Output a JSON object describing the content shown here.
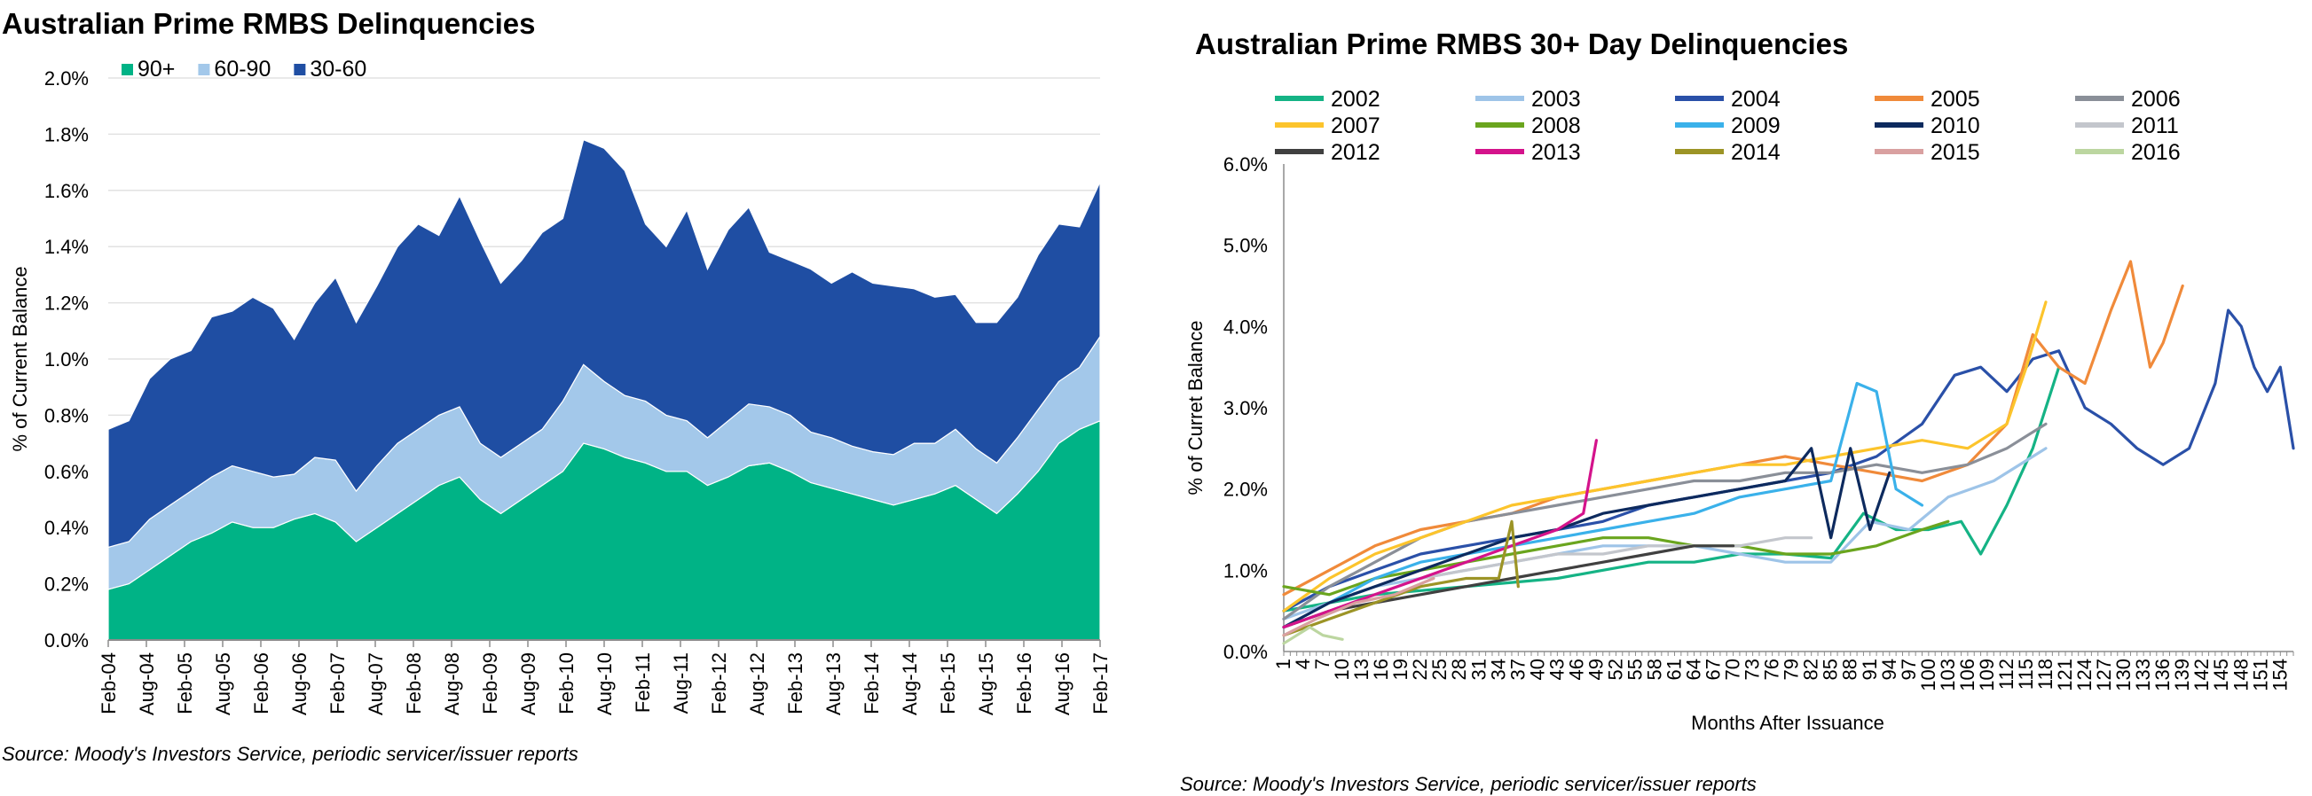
{
  "chart_data": [
    {
      "type": "area",
      "stacked": true,
      "title": "Australian Prime RMBS Delinquencies",
      "ylabel": "% of Current Balance",
      "xlabel": "",
      "ylim": [
        0,
        2.0
      ],
      "yticks": [
        "0.0%",
        "0.2%",
        "0.4%",
        "0.6%",
        "0.8%",
        "1.0%",
        "1.2%",
        "1.4%",
        "1.6%",
        "1.8%",
        "2.0%"
      ],
      "grid": "horizontal",
      "legend_position": "top-left",
      "x_tick_labels": [
        "Feb-04",
        "Aug-04",
        "Feb-05",
        "Aug-05",
        "Feb-06",
        "Aug-06",
        "Feb-07",
        "Aug-07",
        "Feb-08",
        "Aug-08",
        "Feb-09",
        "Aug-09",
        "Feb-10",
        "Aug-10",
        "Feb-11",
        "Aug-11",
        "Feb-12",
        "Aug-12",
        "Feb-13",
        "Aug-13",
        "Feb-14",
        "Aug-14",
        "Feb-15",
        "Aug-15",
        "Feb-16",
        "Aug-16",
        "Feb-17"
      ],
      "series": [
        {
          "name": "90+",
          "color": "#00b386",
          "values": [
            0.18,
            0.2,
            0.25,
            0.3,
            0.35,
            0.38,
            0.42,
            0.4,
            0.4,
            0.43,
            0.45,
            0.42,
            0.35,
            0.4,
            0.45,
            0.5,
            0.55,
            0.58,
            0.5,
            0.45,
            0.5,
            0.55,
            0.6,
            0.7,
            0.68,
            0.65,
            0.63,
            0.6,
            0.6,
            0.55,
            0.58,
            0.62,
            0.63,
            0.6,
            0.56,
            0.54,
            0.52,
            0.5,
            0.48,
            0.5,
            0.52,
            0.55,
            0.5,
            0.45,
            0.52,
            0.6,
            0.7,
            0.75,
            0.78
          ]
        },
        {
          "name": "60-90",
          "color": "#a3c8ea",
          "values": [
            0.15,
            0.15,
            0.18,
            0.18,
            0.18,
            0.2,
            0.2,
            0.2,
            0.18,
            0.16,
            0.2,
            0.22,
            0.18,
            0.22,
            0.25,
            0.25,
            0.25,
            0.25,
            0.2,
            0.2,
            0.2,
            0.2,
            0.25,
            0.28,
            0.24,
            0.22,
            0.22,
            0.2,
            0.18,
            0.17,
            0.2,
            0.22,
            0.2,
            0.2,
            0.18,
            0.18,
            0.17,
            0.17,
            0.18,
            0.2,
            0.18,
            0.2,
            0.18,
            0.18,
            0.2,
            0.22,
            0.22,
            0.22,
            0.3
          ]
        },
        {
          "name": "30-60",
          "color": "#1f4ea3",
          "values": [
            0.42,
            0.43,
            0.5,
            0.52,
            0.5,
            0.57,
            0.55,
            0.62,
            0.6,
            0.48,
            0.55,
            0.65,
            0.6,
            0.64,
            0.7,
            0.73,
            0.64,
            0.75,
            0.72,
            0.62,
            0.65,
            0.7,
            0.65,
            0.8,
            0.83,
            0.8,
            0.63,
            0.6,
            0.75,
            0.6,
            0.68,
            0.7,
            0.55,
            0.55,
            0.58,
            0.55,
            0.62,
            0.6,
            0.6,
            0.55,
            0.52,
            0.48,
            0.45,
            0.5,
            0.5,
            0.55,
            0.56,
            0.5,
            0.55
          ]
        }
      ]
    },
    {
      "type": "line",
      "title": "Australian Prime RMBS  30+ Day Delinquencies",
      "ylabel": "% of Curret Balance",
      "xlabel": "Months After Issuance",
      "ylim": [
        0,
        6.0
      ],
      "xlim": [
        1,
        156
      ],
      "yticks": [
        "0.0%",
        "1.0%",
        "2.0%",
        "3.0%",
        "4.0%",
        "5.0%",
        "6.0%"
      ],
      "x_tick_labels": [
        "1",
        "4",
        "7",
        "10",
        "13",
        "16",
        "19",
        "22",
        "25",
        "28",
        "31",
        "34",
        "37",
        "40",
        "43",
        "46",
        "49",
        "52",
        "55",
        "58",
        "61",
        "64",
        "67",
        "70",
        "73",
        "76",
        "79",
        "82",
        "85",
        "88",
        "91",
        "94",
        "97",
        "100",
        "103",
        "106",
        "109",
        "112",
        "115",
        "118",
        "121",
        "124",
        "127",
        "130",
        "133",
        "136",
        "139",
        "142",
        "145",
        "148",
        "151",
        "154"
      ],
      "legend_position": "top",
      "series": [
        {
          "name": "2002",
          "color": "#15b385",
          "x": [
            1,
            8,
            15,
            22,
            29,
            36,
            43,
            50,
            57,
            64,
            71,
            78,
            85,
            90,
            95,
            100,
            105,
            108,
            112,
            116,
            120
          ],
          "values": [
            0.5,
            0.6,
            0.7,
            0.75,
            0.8,
            0.85,
            0.9,
            1.0,
            1.1,
            1.1,
            1.2,
            1.2,
            1.15,
            1.7,
            1.5,
            1.5,
            1.6,
            1.2,
            1.8,
            2.5,
            3.5
          ]
        },
        {
          "name": "2003",
          "color": "#9ec4e8",
          "x": [
            1,
            8,
            15,
            22,
            29,
            36,
            43,
            50,
            57,
            64,
            71,
            78,
            85,
            91,
            97,
            103,
            110,
            118
          ],
          "values": [
            0.4,
            0.6,
            0.8,
            0.9,
            1.0,
            1.1,
            1.2,
            1.3,
            1.3,
            1.3,
            1.2,
            1.1,
            1.1,
            1.6,
            1.5,
            1.9,
            2.1,
            2.5
          ]
        },
        {
          "name": "2004",
          "color": "#2a50a8",
          "x": [
            1,
            8,
            15,
            22,
            29,
            36,
            43,
            50,
            57,
            64,
            71,
            78,
            85,
            92,
            99,
            104,
            108,
            112,
            116,
            120,
            124,
            128,
            132,
            136,
            140,
            144,
            146,
            148,
            150,
            152,
            154,
            156
          ],
          "values": [
            0.5,
            0.8,
            1.0,
            1.2,
            1.3,
            1.4,
            1.5,
            1.6,
            1.8,
            1.9,
            2.0,
            2.1,
            2.2,
            2.4,
            2.8,
            3.4,
            3.5,
            3.2,
            3.6,
            3.7,
            3.0,
            2.8,
            2.5,
            2.3,
            2.5,
            3.3,
            4.2,
            4.0,
            3.5,
            3.2,
            3.5,
            2.5
          ]
        },
        {
          "name": "2005",
          "color": "#f08a3a",
          "x": [
            1,
            8,
            15,
            22,
            29,
            36,
            43,
            50,
            57,
            64,
            71,
            78,
            85,
            92,
            99,
            106,
            112,
            116,
            120,
            124,
            128,
            131,
            134,
            136,
            139
          ],
          "values": [
            0.7,
            1.0,
            1.3,
            1.5,
            1.6,
            1.7,
            1.9,
            2.0,
            2.1,
            2.2,
            2.3,
            2.4,
            2.3,
            2.2,
            2.1,
            2.3,
            2.8,
            3.9,
            3.5,
            3.3,
            4.2,
            4.8,
            3.5,
            3.8,
            4.5
          ]
        },
        {
          "name": "2006",
          "color": "#8a8f98",
          "x": [
            1,
            8,
            15,
            22,
            29,
            36,
            43,
            50,
            57,
            64,
            71,
            78,
            85,
            92,
            99,
            106,
            112,
            118
          ],
          "values": [
            0.4,
            0.8,
            1.1,
            1.4,
            1.6,
            1.7,
            1.8,
            1.9,
            2.0,
            2.1,
            2.1,
            2.2,
            2.2,
            2.3,
            2.2,
            2.3,
            2.5,
            2.8
          ]
        },
        {
          "name": "2007",
          "color": "#fcc42c",
          "x": [
            1,
            8,
            15,
            22,
            29,
            36,
            43,
            50,
            57,
            64,
            71,
            78,
            85,
            92,
            99,
            106,
            112,
            115,
            118
          ],
          "values": [
            0.5,
            0.9,
            1.2,
            1.4,
            1.6,
            1.8,
            1.9,
            2.0,
            2.1,
            2.2,
            2.3,
            2.3,
            2.4,
            2.5,
            2.6,
            2.5,
            2.8,
            3.5,
            4.3
          ]
        },
        {
          "name": "2008",
          "color": "#6aa51e",
          "x": [
            1,
            8,
            15,
            22,
            29,
            36,
            43,
            50,
            57,
            64,
            71,
            78,
            85,
            92,
            99,
            103
          ],
          "values": [
            0.8,
            0.7,
            0.9,
            1.0,
            1.1,
            1.2,
            1.3,
            1.4,
            1.4,
            1.3,
            1.3,
            1.2,
            1.2,
            1.3,
            1.5,
            1.6
          ]
        },
        {
          "name": "2009",
          "color": "#3ab1ea",
          "x": [
            1,
            8,
            15,
            22,
            29,
            36,
            43,
            50,
            57,
            64,
            71,
            78,
            85,
            89,
            92,
            95,
            99
          ],
          "values": [
            0.3,
            0.6,
            0.9,
            1.1,
            1.2,
            1.3,
            1.4,
            1.5,
            1.6,
            1.7,
            1.9,
            2.0,
            2.1,
            3.3,
            3.2,
            2.0,
            1.8
          ]
        },
        {
          "name": "2010",
          "color": "#0d2a5e",
          "x": [
            1,
            8,
            15,
            22,
            29,
            36,
            43,
            50,
            57,
            64,
            71,
            78,
            82,
            85,
            88,
            91,
            94
          ],
          "values": [
            0.3,
            0.6,
            0.8,
            1.0,
            1.2,
            1.4,
            1.5,
            1.7,
            1.8,
            1.9,
            2.0,
            2.1,
            2.5,
            1.4,
            2.5,
            1.5,
            2.2
          ]
        },
        {
          "name": "2011",
          "color": "#c3c6cc",
          "x": [
            1,
            8,
            15,
            22,
            29,
            36,
            43,
            50,
            57,
            64,
            71,
            78,
            82
          ],
          "values": [
            0.3,
            0.5,
            0.7,
            0.9,
            1.0,
            1.1,
            1.2,
            1.2,
            1.3,
            1.3,
            1.3,
            1.4,
            1.4
          ]
        },
        {
          "name": "2012",
          "color": "#404040",
          "x": [
            1,
            8,
            15,
            22,
            29,
            36,
            43,
            50,
            57,
            64,
            70
          ],
          "values": [
            0.3,
            0.5,
            0.6,
            0.7,
            0.8,
            0.9,
            1.0,
            1.1,
            1.2,
            1.3,
            1.3
          ]
        },
        {
          "name": "2013",
          "color": "#d4138b",
          "x": [
            1,
            8,
            15,
            22,
            29,
            36,
            43,
            47,
            49
          ],
          "values": [
            0.3,
            0.5,
            0.7,
            0.9,
            1.1,
            1.3,
            1.5,
            1.7,
            2.6
          ]
        },
        {
          "name": "2014",
          "color": "#9c9426",
          "x": [
            1,
            8,
            15,
            22,
            29,
            34,
            36,
            37
          ],
          "values": [
            0.2,
            0.4,
            0.6,
            0.8,
            0.9,
            0.9,
            1.6,
            0.8
          ]
        },
        {
          "name": "2015",
          "color": "#d9a0a0",
          "x": [
            1,
            6,
            12,
            18,
            24
          ],
          "values": [
            0.2,
            0.4,
            0.6,
            0.7,
            0.9
          ]
        },
        {
          "name": "2016",
          "color": "#bcd6a0",
          "x": [
            1,
            3,
            5,
            7,
            10
          ],
          "values": [
            0.1,
            0.2,
            0.3,
            0.2,
            0.15
          ]
        }
      ]
    }
  ],
  "sources": [
    "Source: Moody's Investors Service, periodic servicer/issuer reports",
    "Source: Moody's Investors Service, periodic servicer/issuer reports"
  ]
}
